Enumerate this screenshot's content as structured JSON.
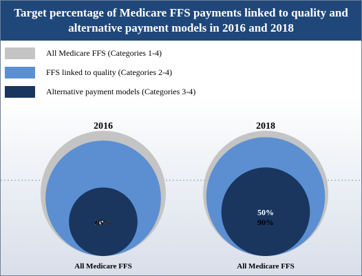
{
  "header": {
    "title": "Target percentage of Medicare FFS payments linked to quality and alternative payment models in 2016 and 2018"
  },
  "legend": [
    {
      "label": "All Medicare FFS (Categories 1-4)",
      "color": "#c4c4c4"
    },
    {
      "label": "FFS linked to quality (Categories 2-4)",
      "color": "#5b8fd2"
    },
    {
      "label": "Alternative payment models (Categories 3-4)",
      "color": "#1a365e"
    }
  ],
  "chart_data": {
    "type": "nested-circles",
    "title": "Target percentage of Medicare FFS payments linked to quality and alternative payment models in 2016 and 2018",
    "categories": [
      "2016",
      "2018"
    ],
    "series": [
      {
        "name": "All Medicare FFS (Categories 1-4)",
        "values": [
          100,
          100
        ],
        "color": "#c4c4c4"
      },
      {
        "name": "FFS linked to quality (Categories 2-4)",
        "values": [
          85,
          90
        ],
        "color": "#5b8fd2"
      },
      {
        "name": "Alternative payment models (Categories 3-4)",
        "values": [
          30,
          50
        ],
        "color": "#1a365e"
      }
    ],
    "value_labels": [
      {
        "year": "2016",
        "inner": "30%",
        "middle": "85%"
      },
      {
        "year": "2018",
        "inner": "50%",
        "middle": "90%"
      }
    ],
    "xlabel": "All Medicare FFS"
  }
}
